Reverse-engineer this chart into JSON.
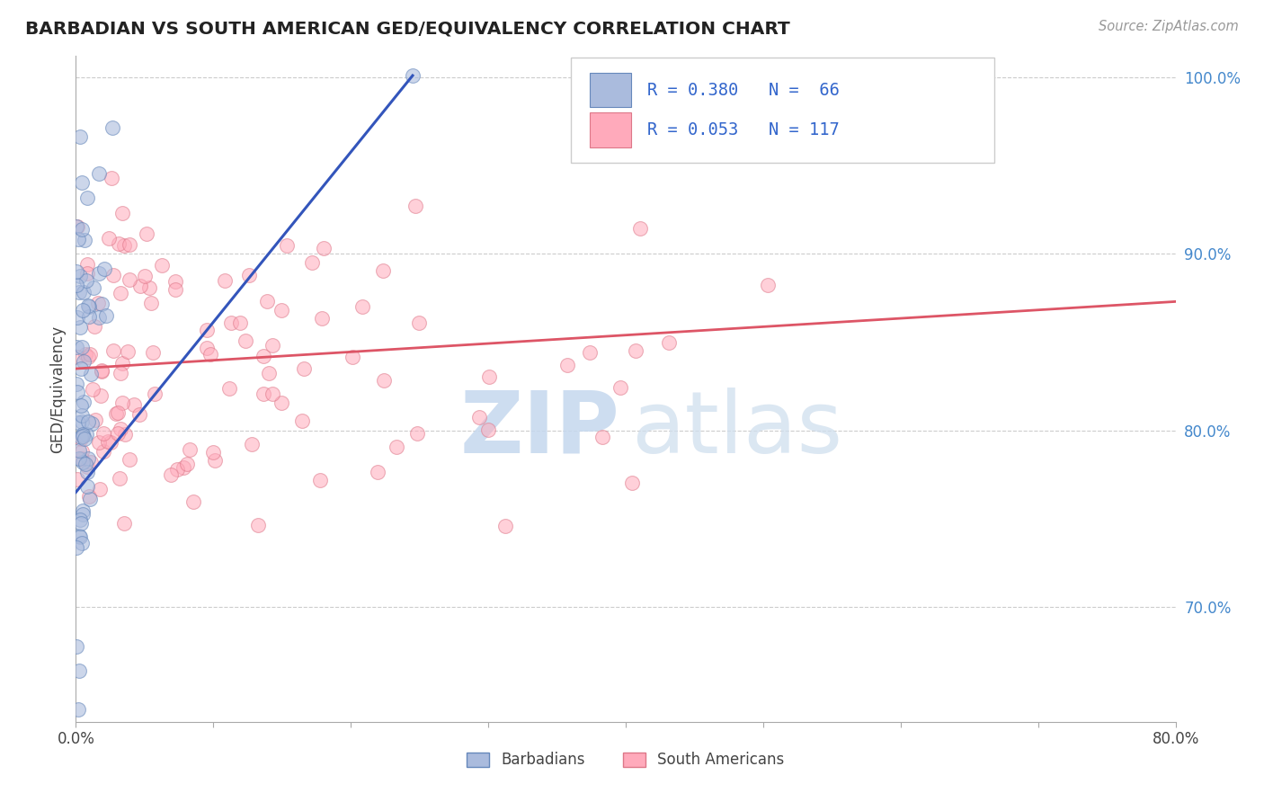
{
  "title": "BARBADIAN VS SOUTH AMERICAN GED/EQUIVALENCY CORRELATION CHART",
  "source_text": "Source: ZipAtlas.com",
  "ylabel_label": "GED/Equivalency",
  "xlim": [
    0.0,
    0.8
  ],
  "ylim": [
    0.635,
    1.012
  ],
  "background_color": "#ffffff",
  "plot_bg_color": "#ffffff",
  "grid_color": "#cccccc",
  "blue_color": "#aabbdd",
  "blue_edge": "#6688bb",
  "pink_color": "#ffaabb",
  "pink_edge": "#dd7788",
  "blue_line_color": "#3355bb",
  "pink_line_color": "#dd5566",
  "watermark_zip_color": "#c5d8ee",
  "watermark_atlas_color": "#d0dfee",
  "legend_color_text": "#3366cc",
  "legend_color_N": "#111111",
  "R_blue": 0.38,
  "N_blue": 66,
  "R_pink": 0.053,
  "N_pink": 117,
  "blue_line_x0": 0.0,
  "blue_line_y0": 0.765,
  "blue_line_x1": 0.245,
  "blue_line_y1": 1.001,
  "pink_line_x0": 0.0,
  "pink_line_y0": 0.835,
  "pink_line_x1": 0.8,
  "pink_line_y1": 0.873
}
